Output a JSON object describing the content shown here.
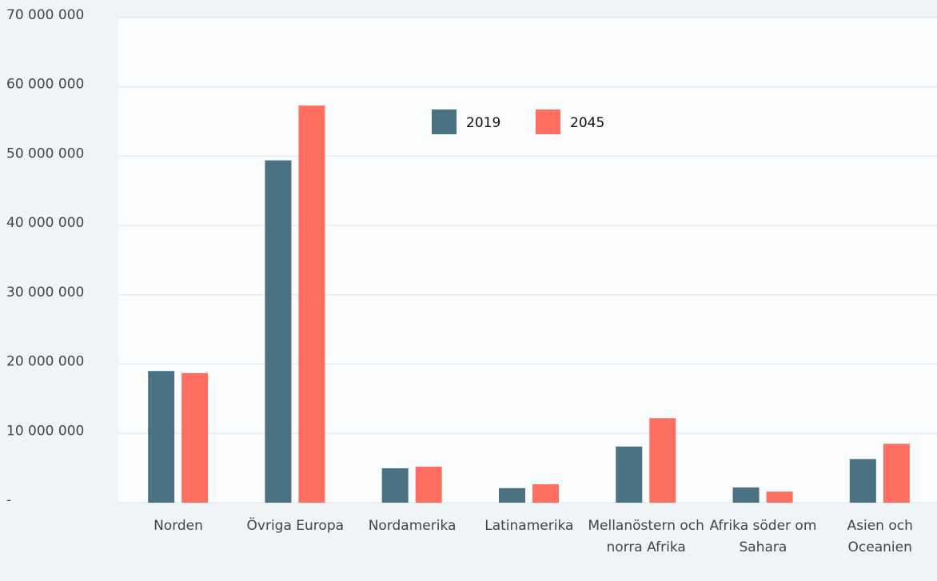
{
  "chart_data": {
    "type": "bar",
    "categories": [
      "Norden",
      "Övriga Europa",
      "Nordamerika",
      "Latinamerika",
      "Mellanöstern och norra Afrika",
      "Afrika söder om Sahara",
      "Asien och Oceanien"
    ],
    "series": [
      {
        "name": "2019",
        "color": "#4a7282",
        "values": [
          19000000,
          49400000,
          4960000,
          2100000,
          8100000,
          2200000,
          6300000
        ]
      },
      {
        "name": "2045",
        "color": "#ff6f61",
        "values": [
          18700000,
          57300000,
          5200000,
          2650000,
          12200000,
          1600000,
          8500000
        ]
      }
    ],
    "ylim": [
      0,
      70000000
    ],
    "yticks": [
      {
        "value": 0,
        "label": "-"
      },
      {
        "value": 10000000,
        "label": "10 000 000"
      },
      {
        "value": 20000000,
        "label": "20 000 000"
      },
      {
        "value": 30000000,
        "label": "30 000 000"
      },
      {
        "value": 40000000,
        "label": "40 000 000"
      },
      {
        "value": 50000000,
        "label": "50 000 000"
      },
      {
        "value": 60000000,
        "label": "60 000 000"
      },
      {
        "value": 70000000,
        "label": "70 000 000"
      }
    ],
    "grid": true,
    "legend": "top"
  }
}
